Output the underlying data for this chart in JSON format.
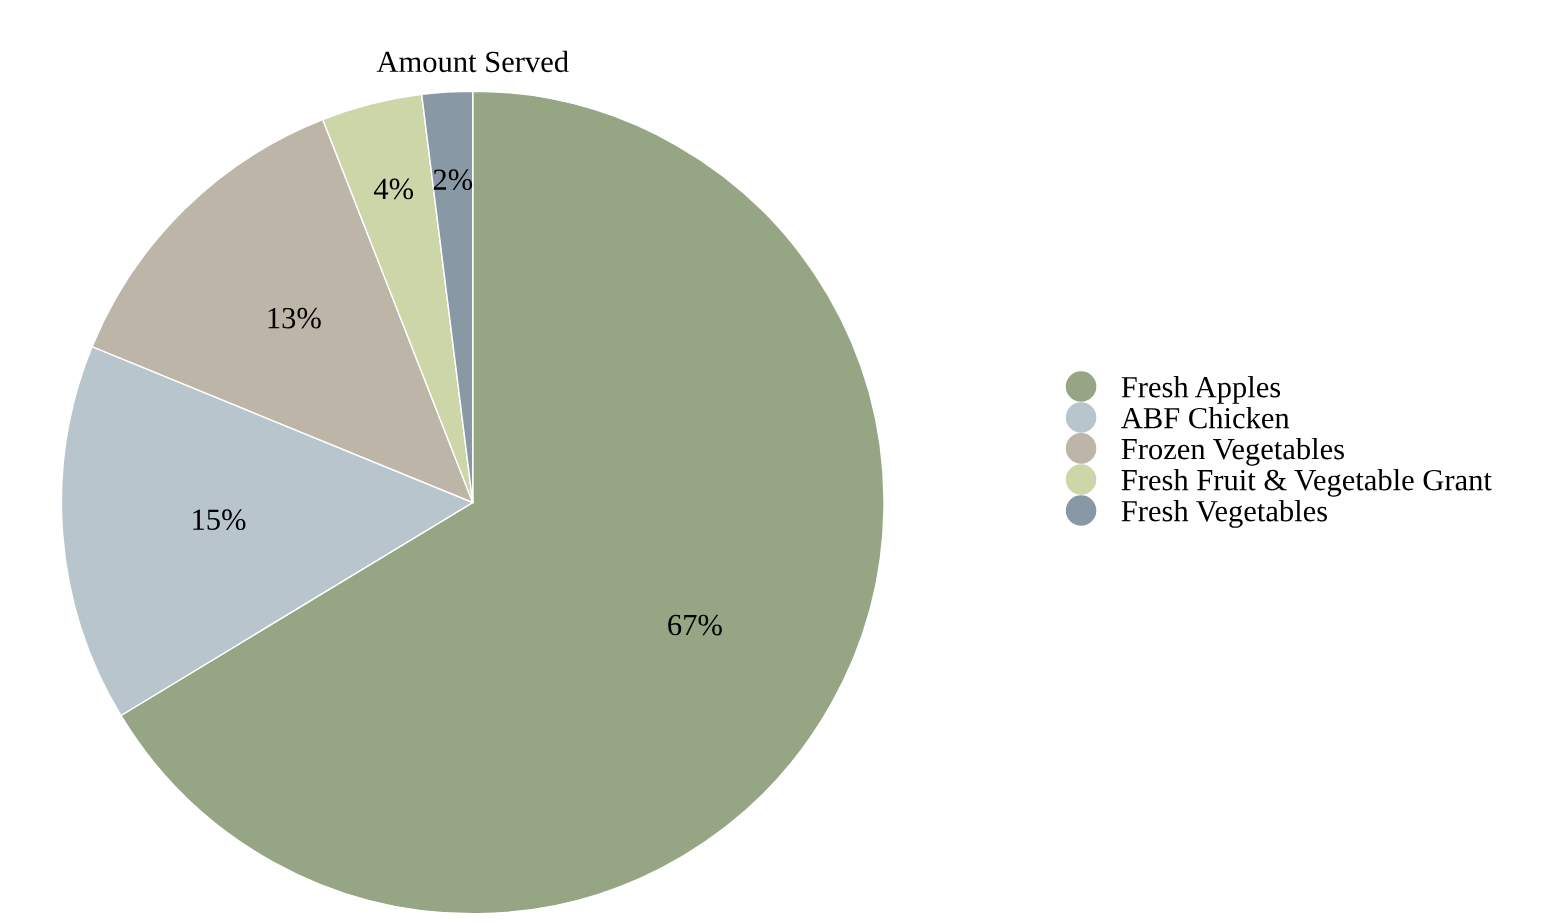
{
  "chart_data": {
    "type": "pie",
    "title": "Amount Served",
    "categories": [
      "Fresh Apples",
      "ABF Chicken",
      "Frozen Vegetables",
      "Fresh Fruit & Vegetable Grant",
      "Fresh Vegetables"
    ],
    "values": [
      67,
      15,
      13,
      4,
      2
    ],
    "colors": [
      "#96a583",
      "#b9c5cd",
      "#bdb6a8",
      "#cdd6a9",
      "#8898a4"
    ],
    "value_labels": [
      "67%",
      "15%",
      "13%",
      "4%",
      "2%"
    ],
    "legend": "right"
  }
}
